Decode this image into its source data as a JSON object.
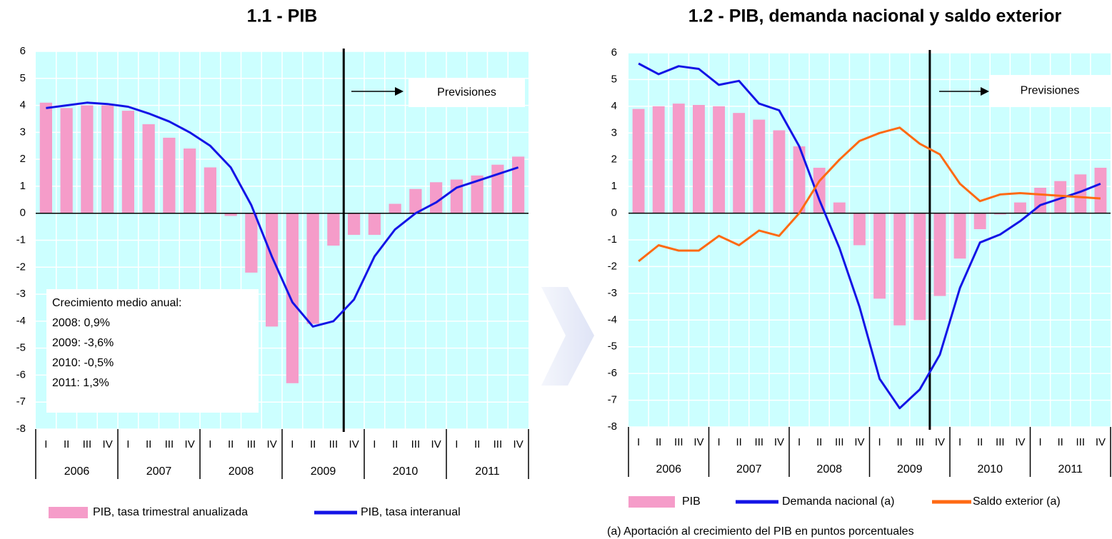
{
  "chart_data": [
    {
      "type": "combo",
      "title": "1.1 - PIB",
      "categories": [
        "I",
        "II",
        "III",
        "IV",
        "I",
        "II",
        "III",
        "IV",
        "I",
        "II",
        "III",
        "IV",
        "I",
        "II",
        "III",
        "IV",
        "I",
        "II",
        "III",
        "IV",
        "I",
        "II",
        "III",
        "IV"
      ],
      "years": [
        "2006",
        "2007",
        "2008",
        "2009",
        "2010",
        "2011"
      ],
      "ylim": [
        -8,
        6
      ],
      "yticks": [
        -8,
        -7,
        -6,
        -5,
        -4,
        -3,
        -2,
        -1,
        0,
        1,
        2,
        3,
        4,
        5,
        6
      ],
      "grid": true,
      "background": "#ccffff",
      "series": [
        {
          "name": "PIB, tasa trimestral anualizada",
          "type": "bar",
          "color": "#f59cc9",
          "values": [
            4.1,
            3.9,
            4.0,
            4.0,
            3.8,
            3.3,
            2.8,
            2.4,
            1.7,
            -0.1,
            -2.2,
            -4.2,
            -6.3,
            -4.1,
            -1.2,
            -0.8,
            -0.8,
            0.35,
            0.9,
            1.15,
            1.25,
            1.4,
            1.8,
            2.1
          ]
        },
        {
          "name": "PIB, tasa interanual",
          "type": "line",
          "color": "#1414e6",
          "values": [
            3.9,
            4.0,
            4.1,
            4.05,
            3.95,
            3.7,
            3.4,
            3.0,
            2.5,
            1.7,
            0.3,
            -1.6,
            -3.3,
            -4.2,
            -4.0,
            -3.2,
            -1.6,
            -0.6,
            0.0,
            0.4,
            0.95,
            1.2,
            1.45,
            1.7
          ]
        }
      ],
      "annotation": "Previsiones",
      "text_box": {
        "title": "Crecimiento medio anual:",
        "lines": [
          "2008:   0,9%",
          "2009:   -3,6%",
          "2010:   -0,5%",
          "2011:   1,3%"
        ]
      }
    },
    {
      "type": "combo",
      "title": "1.2 - PIB, demanda nacional y saldo exterior",
      "categories": [
        "I",
        "II",
        "III",
        "IV",
        "I",
        "II",
        "III",
        "IV",
        "I",
        "II",
        "III",
        "IV",
        "I",
        "II",
        "III",
        "IV",
        "I",
        "II",
        "III",
        "IV",
        "I",
        "II",
        "III",
        "IV"
      ],
      "years": [
        "2006",
        "2007",
        "2008",
        "2009",
        "2010",
        "2011"
      ],
      "ylim": [
        -8,
        6
      ],
      "yticks": [
        -8,
        -7,
        -6,
        -5,
        -4,
        -3,
        -2,
        -1,
        0,
        1,
        2,
        3,
        4,
        5,
        6
      ],
      "grid": true,
      "background": "#ccffff",
      "series": [
        {
          "name": "PIB",
          "type": "bar",
          "color": "#f59cc9",
          "values": [
            3.9,
            4.0,
            4.1,
            4.05,
            4.0,
            3.75,
            3.5,
            3.1,
            2.5,
            1.7,
            0.4,
            -1.2,
            -3.2,
            -4.2,
            -4.0,
            -3.1,
            -1.7,
            -0.6,
            -0.05,
            0.4,
            0.95,
            1.2,
            1.45,
            1.7
          ]
        },
        {
          "name": "Demanda nacional (a)",
          "type": "line",
          "color": "#1414e6",
          "values": [
            5.6,
            5.2,
            5.5,
            5.4,
            4.8,
            4.95,
            4.1,
            3.85,
            2.5,
            0.5,
            -1.3,
            -3.5,
            -6.2,
            -7.3,
            -6.6,
            -5.3,
            -2.8,
            -1.1,
            -0.8,
            -0.3,
            0.3,
            0.55,
            0.8,
            1.1
          ]
        },
        {
          "name": "Saldo exterior (a)",
          "type": "line",
          "color": "#ff6a13",
          "values": [
            -1.8,
            -1.2,
            -1.4,
            -1.4,
            -0.85,
            -1.2,
            -0.65,
            -0.85,
            0.0,
            1.2,
            2.0,
            2.7,
            3.0,
            3.2,
            2.6,
            2.2,
            1.1,
            0.45,
            0.7,
            0.75,
            0.7,
            0.65,
            0.6,
            0.55
          ]
        }
      ],
      "annotation": "Previsiones",
      "footnote": "(a) Aportación al crecimiento del PIB en puntos porcentuales"
    }
  ]
}
